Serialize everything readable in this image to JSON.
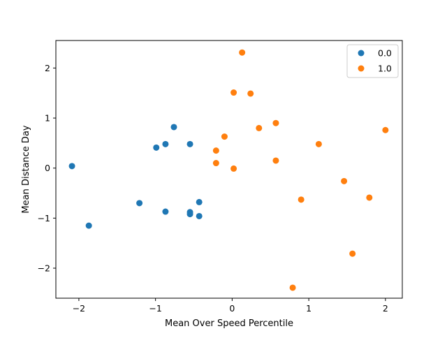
{
  "chart_data": {
    "type": "scatter",
    "title": "",
    "xlabel": "Mean Over Speed Percentile",
    "ylabel": "Mean Distance Day",
    "xlim": [
      -2.3,
      2.22
    ],
    "ylim": [
      -2.6,
      2.55
    ],
    "xticks": [
      -2,
      -1,
      0,
      1,
      2
    ],
    "yticks": [
      -2,
      -1,
      0,
      1,
      2
    ],
    "grid": false,
    "legend_position": "top-right",
    "series": [
      {
        "name": "0.0",
        "color": "#1f77b4",
        "points": [
          [
            -2.09,
            0.04
          ],
          [
            -1.87,
            -1.15
          ],
          [
            -1.21,
            -0.7
          ],
          [
            -0.99,
            0.41
          ],
          [
            -0.87,
            0.48
          ],
          [
            -0.87,
            -0.87
          ],
          [
            -0.76,
            0.82
          ],
          [
            -0.55,
            0.48
          ],
          [
            -0.55,
            -0.88
          ],
          [
            -0.55,
            -0.92
          ],
          [
            -0.43,
            -0.68
          ],
          [
            -0.43,
            -0.96
          ]
        ]
      },
      {
        "name": "1.0",
        "color": "#ff7f0e",
        "points": [
          [
            0.13,
            2.31
          ],
          [
            0.02,
            1.51
          ],
          [
            0.24,
            1.49
          ],
          [
            0.57,
            0.9
          ],
          [
            0.35,
            0.8
          ],
          [
            2.0,
            0.76
          ],
          [
            -0.1,
            0.63
          ],
          [
            1.13,
            0.48
          ],
          [
            -0.21,
            0.35
          ],
          [
            0.57,
            0.15
          ],
          [
            -0.21,
            0.1
          ],
          [
            0.02,
            -0.01
          ],
          [
            1.46,
            -0.26
          ],
          [
            1.79,
            -0.59
          ],
          [
            0.9,
            -0.63
          ],
          [
            1.57,
            -1.71
          ],
          [
            0.79,
            -2.39
          ]
        ]
      }
    ]
  }
}
